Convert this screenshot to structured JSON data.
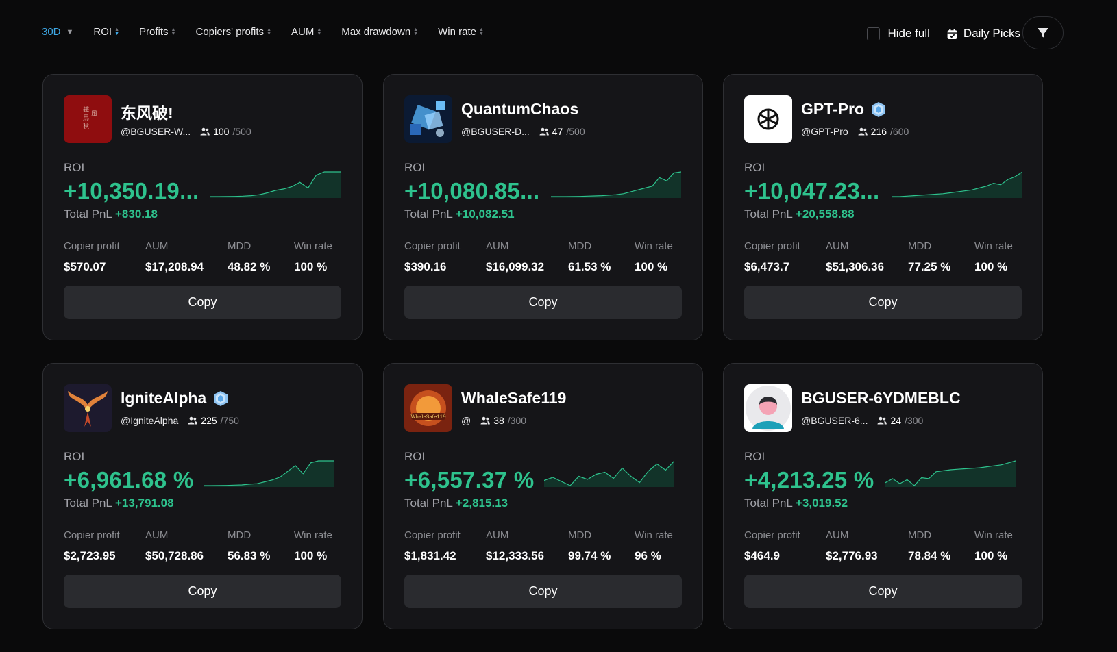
{
  "toolbar": {
    "period": "30D",
    "sorts": [
      "ROI",
      "Profits",
      "Copiers' profits",
      "AUM",
      "Max drawdown",
      "Win rate"
    ],
    "hide_full_label": "Hide full",
    "hide_full_checked": false,
    "daily_picks_label": "Daily Picks"
  },
  "stat_labels": {
    "copier_profit": "Copier profit",
    "aum": "AUM",
    "mdd": "MDD",
    "win_rate": "Win rate"
  },
  "roi_label": "ROI",
  "pnl_label": "Total PnL",
  "copy_label": "Copy",
  "traders": [
    {
      "name": "东风破!",
      "handle": "@BGUSER-W...",
      "followers": "100",
      "followers_max": "/500",
      "verified": false,
      "roi": "+10,350.19...",
      "total_pnl": "+830.18",
      "copier_profit": "$570.07",
      "aum": "$17,208.94",
      "mdd": "48.82 %",
      "win_rate": "100 %",
      "avatar": "calligraphy-red",
      "sparkline": [
        0,
        0,
        0.2,
        0.5,
        1,
        2,
        4,
        8,
        13,
        16,
        21,
        30,
        18,
        45,
        52,
        52,
        52
      ]
    },
    {
      "name": "QuantumChaos",
      "handle": "@BGUSER-D...",
      "followers": "47",
      "followers_max": "/500",
      "verified": false,
      "roi": "+10,080.85...",
      "total_pnl": "+10,082.51",
      "copier_profit": "$390.16",
      "aum": "$16,099.32",
      "mdd": "61.53 %",
      "win_rate": "100 %",
      "avatar": "blue-cubes",
      "sparkline": [
        0,
        0,
        0,
        0.2,
        0.5,
        1,
        1.5,
        2,
        3,
        4,
        6,
        10,
        14,
        18,
        22,
        40,
        33,
        50,
        52
      ]
    },
    {
      "name": "GPT-Pro",
      "handle": "@GPT-Pro",
      "followers": "216",
      "followers_max": "/600",
      "verified": true,
      "roi": "+10,047.23...",
      "total_pnl": "+20,558.88",
      "copier_profit": "$6,473.7",
      "aum": "$51,306.36",
      "mdd": "77.25 %",
      "win_rate": "100 %",
      "avatar": "openai-logo",
      "sparkline": [
        0,
        0,
        1,
        2,
        3,
        4,
        5,
        6,
        8,
        10,
        12,
        14,
        18,
        22,
        28,
        25,
        36,
        42,
        52
      ]
    },
    {
      "name": "IgniteAlpha",
      "handle": "@IgniteAlpha",
      "followers": "225",
      "followers_max": "/750",
      "verified": true,
      "roi": "+6,961.68 %",
      "total_pnl": "+13,791.08",
      "copier_profit": "$2,723.95",
      "aum": "$50,728.86",
      "mdd": "56.83 %",
      "win_rate": "100 %",
      "avatar": "phoenix",
      "sparkline": [
        0,
        0,
        0.2,
        0.5,
        1,
        1.5,
        3,
        4,
        8,
        12,
        18,
        30,
        42,
        25,
        48,
        52,
        52,
        52
      ]
    },
    {
      "name": "WhaleSafe119",
      "handle": "@",
      "followers": "38",
      "followers_max": "/300",
      "verified": false,
      "roi": "+6,557.37 %",
      "total_pnl": "+2,815.13",
      "copier_profit": "$1,831.42",
      "aum": "$12,333.56",
      "mdd": "99.74 %",
      "win_rate": "96 %",
      "avatar": "whale-emblem",
      "sparkline": [
        14,
        20,
        12,
        4,
        22,
        16,
        26,
        30,
        18,
        38,
        22,
        10,
        32,
        46,
        34,
        52
      ]
    },
    {
      "name": "BGUSER-6YDMEBLC",
      "handle": "@BGUSER-6...",
      "followers": "24",
      "followers_max": "/300",
      "verified": false,
      "roi": "+4,213.25 %",
      "total_pnl": "+3,019.52",
      "copier_profit": "$464.9",
      "aum": "$2,776.93",
      "mdd": "78.84 %",
      "win_rate": "100 %",
      "avatar": "default-person",
      "sparkline": [
        8,
        16,
        6,
        14,
        2,
        18,
        16,
        30,
        32,
        34,
        35,
        36,
        37,
        38,
        40,
        42,
        44,
        48,
        52
      ]
    }
  ]
}
